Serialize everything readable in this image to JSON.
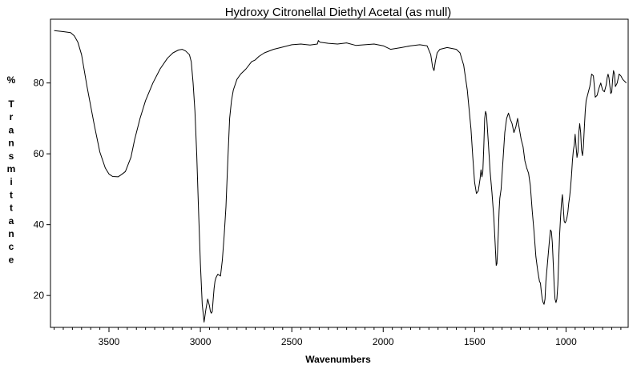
{
  "chart_data": {
    "type": "line",
    "title": "Hydroxy Citronellal Diethyl Acetal (as mull)",
    "xlabel": "Wavenumbers",
    "ylabel": "% Transmittance",
    "ylabel_prefix": "%",
    "ylabel_letters": [
      "T",
      "r",
      "a",
      "n",
      "s",
      "m",
      "i",
      "t",
      "t",
      "a",
      "n",
      "c",
      "e"
    ],
    "xlim": [
      3820,
      660
    ],
    "ylim": [
      11,
      98
    ],
    "x_ticks": [
      3500,
      3000,
      2500,
      2000,
      1500,
      1000
    ],
    "x_tick_labels": [
      "3500",
      "3000",
      "2500",
      "2000",
      "1500",
      "1000"
    ],
    "y_ticks": [
      20,
      40,
      60,
      80
    ],
    "y_tick_labels": [
      "20",
      "40",
      "60",
      "80"
    ],
    "grid": false,
    "legend": "none",
    "line_color": "#000000",
    "series": [
      {
        "x": [
          3800,
          3750,
          3710,
          3690,
          3670,
          3650,
          3620,
          3580,
          3550,
          3520,
          3500,
          3480,
          3450,
          3430,
          3410,
          3380,
          3360,
          3330,
          3300,
          3260,
          3220,
          3180,
          3150,
          3120,
          3100,
          3080,
          3060,
          3050,
          3040,
          3030,
          3020,
          3010,
          3000,
          2990,
          2980,
          2970,
          2960,
          2950,
          2945,
          2940,
          2935,
          2930,
          2925,
          2920,
          2915,
          2905,
          2890,
          2880,
          2870,
          2860,
          2850,
          2840,
          2830,
          2820,
          2800,
          2780,
          2750,
          2720,
          2700,
          2680,
          2650,
          2600,
          2560,
          2500,
          2450,
          2400,
          2360,
          2355,
          2345,
          2300,
          2250,
          2200,
          2150,
          2100,
          2050,
          2000,
          1960,
          1900,
          1850,
          1800,
          1760,
          1740,
          1730,
          1722,
          1715,
          1705,
          1690,
          1650,
          1600,
          1580,
          1560,
          1540,
          1520,
          1510,
          1500,
          1490,
          1480,
          1470,
          1465,
          1460,
          1455,
          1450,
          1445,
          1440,
          1435,
          1425,
          1415,
          1405,
          1395,
          1388,
          1382,
          1378,
          1374,
          1370,
          1366,
          1362,
          1355,
          1345,
          1335,
          1325,
          1315,
          1305,
          1295,
          1285,
          1275,
          1265,
          1255,
          1245,
          1235,
          1225,
          1215,
          1205,
          1195,
          1185,
          1175,
          1165,
          1155,
          1145,
          1140,
          1135,
          1130,
          1125,
          1120,
          1115,
          1110,
          1100,
          1090,
          1085,
          1080,
          1075,
          1070,
          1065,
          1060,
          1055,
          1050,
          1045,
          1040,
          1035,
          1030,
          1025,
          1020,
          1015,
          1010,
          1005,
          1000,
          995,
          990,
          985,
          980,
          975,
          970,
          965,
          960,
          955,
          950,
          945,
          940,
          935,
          930,
          925,
          920,
          915,
          910,
          905,
          900,
          895,
          890,
          880,
          870,
          860,
          850,
          845,
          840,
          830,
          820,
          810,
          800,
          790,
          780,
          775,
          770,
          765,
          760,
          755,
          750,
          745,
          740,
          735,
          730,
          720,
          710,
          700,
          690,
          680,
          670
        ],
        "y": [
          94.8,
          94.5,
          94.2,
          93.3,
          91.5,
          88.0,
          79.0,
          68.0,
          60.5,
          56.0,
          54.3,
          53.6,
          53.5,
          54.2,
          55.0,
          59.0,
          64.0,
          70.0,
          75.0,
          80.0,
          84.0,
          87.0,
          88.5,
          89.3,
          89.5,
          89.0,
          88.0,
          86.0,
          80.0,
          72.0,
          60.0,
          44.0,
          29.0,
          17.5,
          12.5,
          16.0,
          19.0,
          17.0,
          15.5,
          15.0,
          15.5,
          19.0,
          22.0,
          24.0,
          25.0,
          26.0,
          25.5,
          30.0,
          37.0,
          45.0,
          58.0,
          70.0,
          75.0,
          78.0,
          81.0,
          82.5,
          84.0,
          86.0,
          86.5,
          87.5,
          88.5,
          89.5,
          90.0,
          90.8,
          91.0,
          90.7,
          91.0,
          92.0,
          91.5,
          91.2,
          91.0,
          91.3,
          90.6,
          90.8,
          91.0,
          90.5,
          89.5,
          90.0,
          90.5,
          90.8,
          90.5,
          88.0,
          84.5,
          83.5,
          86.0,
          88.5,
          89.5,
          90.0,
          89.5,
          88.5,
          85.0,
          78.0,
          67.0,
          59.0,
          52.0,
          48.8,
          49.5,
          53.0,
          55.5,
          53.5,
          55.0,
          62.0,
          70.0,
          72.0,
          71.0,
          63.0,
          55.0,
          49.0,
          42.0,
          35.0,
          28.5,
          29.0,
          33.0,
          38.0,
          44.0,
          47.5,
          50.0,
          58.0,
          66.0,
          70.0,
          71.5,
          69.8,
          68.5,
          66.0,
          67.5,
          70.0,
          67.0,
          64.0,
          62.0,
          58.0,
          56.0,
          54.5,
          51.0,
          44.0,
          38.0,
          31.0,
          27.0,
          24.0,
          23.5,
          21.0,
          19.0,
          18.0,
          17.5,
          19.0,
          24.0,
          30.0,
          36.0,
          38.5,
          38.0,
          35.0,
          29.0,
          23.0,
          19.0,
          18.0,
          19.0,
          23.0,
          30.0,
          37.0,
          42.0,
          46.0,
          48.5,
          45.0,
          41.0,
          40.5,
          41.0,
          42.0,
          43.5,
          46.0,
          48.0,
          50.5,
          54.0,
          58.0,
          61.0,
          62.5,
          65.5,
          62.0,
          59.0,
          60.5,
          66.0,
          68.5,
          66.0,
          61.0,
          59.5,
          62.0,
          67.0,
          72.0,
          75.0,
          77.0,
          79.0,
          82.5,
          82.0,
          79.0,
          76.0,
          76.5,
          78.5,
          80.0,
          78.0,
          77.5,
          79.5,
          81.5,
          82.5,
          81.5,
          79.0,
          77.0,
          77.5,
          81.0,
          83.5,
          82.5,
          79.0,
          80.0,
          82.5,
          82.0,
          81.0,
          80.5,
          80.0
        ]
      }
    ]
  }
}
